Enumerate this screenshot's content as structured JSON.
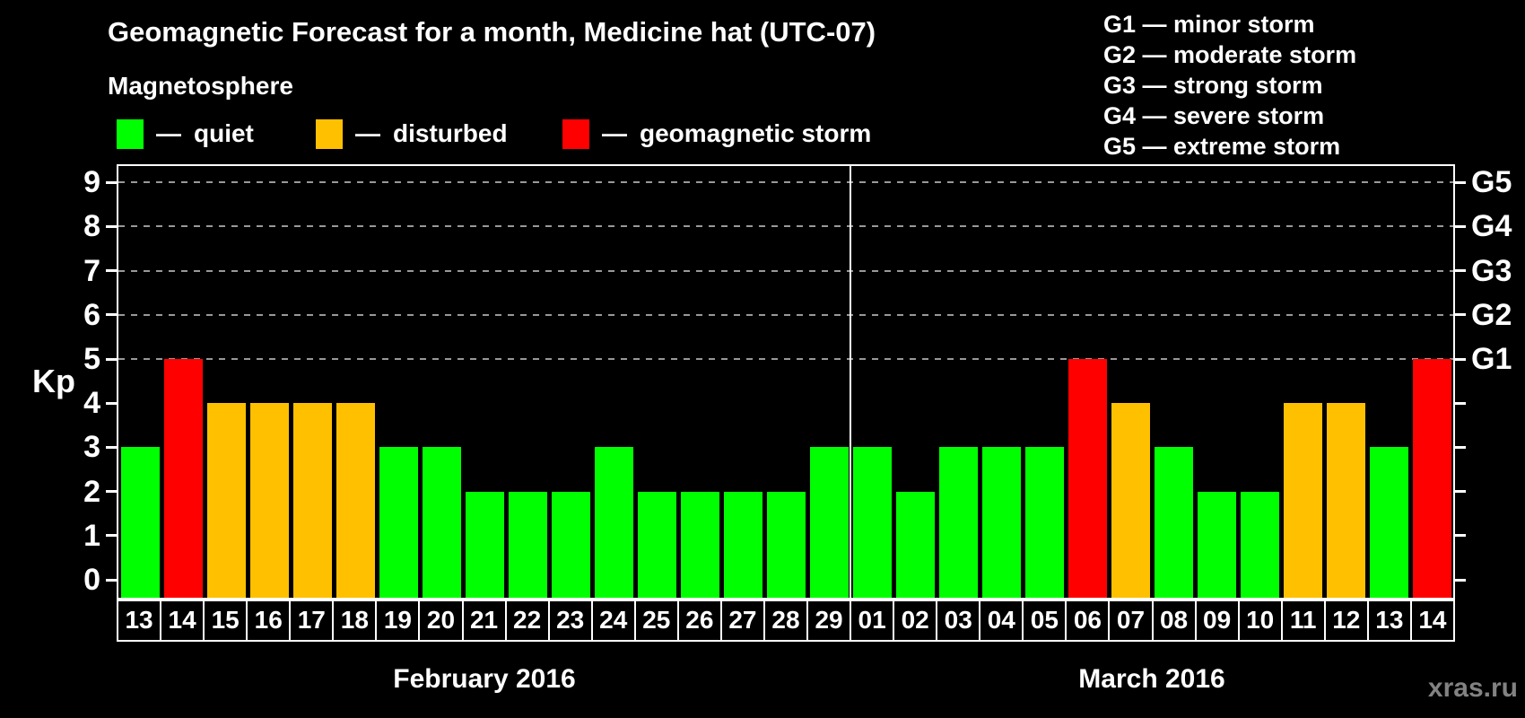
{
  "title": "Geomagnetic Forecast for a month, Medicine hat (UTC-07)",
  "subtitle": "Magnetosphere",
  "dash": "—",
  "watermark": "xras.ru",
  "legend": [
    {
      "label": "quiet",
      "color": "#00ff00"
    },
    {
      "label": "disturbed",
      "color": "#ffc000"
    },
    {
      "label": "geomagnetic storm",
      "color": "#ff0000"
    }
  ],
  "g_levels": [
    {
      "code": "G1",
      "desc": "minor storm",
      "kp": 5
    },
    {
      "code": "G2",
      "desc": "moderate storm",
      "kp": 6
    },
    {
      "code": "G3",
      "desc": "strong storm",
      "kp": 7
    },
    {
      "code": "G4",
      "desc": "severe storm",
      "kp": 8
    },
    {
      "code": "G5",
      "desc": "extreme storm",
      "kp": 9
    }
  ],
  "axis": {
    "kp_label": "Kp",
    "y_ticks": [
      0,
      1,
      2,
      3,
      4,
      5,
      6,
      7,
      8,
      9
    ]
  },
  "chart_data": {
    "type": "bar",
    "title": "Geomagnetic Forecast for a month, Medicine hat (UTC-07)",
    "ylabel": "Kp",
    "ylim": [
      0,
      9
    ],
    "gridlines_at": [
      5,
      6,
      7,
      8,
      9
    ],
    "grid": "dashed horizontal at storm levels only",
    "legend_position": "top-left",
    "color_rule": {
      "quiet_max_kp": 3,
      "disturbed_kp": 4,
      "storm_min_kp": 5,
      "colors": {
        "quiet": "#00ff00",
        "disturbed": "#ffc000",
        "storm": "#ff0000"
      }
    },
    "months": [
      {
        "name": "February 2016",
        "days": [
          "13",
          "14",
          "15",
          "16",
          "17",
          "18",
          "19",
          "20",
          "21",
          "22",
          "23",
          "24",
          "25",
          "26",
          "27",
          "28",
          "29"
        ],
        "kp": [
          3,
          5,
          4,
          4,
          4,
          4,
          3,
          3,
          2,
          2,
          2,
          3,
          2,
          2,
          2,
          2,
          3
        ]
      },
      {
        "name": "March 2016",
        "days": [
          "01",
          "02",
          "03",
          "04",
          "05",
          "06",
          "07",
          "08",
          "09",
          "10",
          "11",
          "12",
          "13",
          "14"
        ],
        "kp": [
          3,
          2,
          3,
          3,
          3,
          5,
          4,
          3,
          2,
          2,
          4,
          4,
          3,
          5
        ]
      }
    ]
  }
}
